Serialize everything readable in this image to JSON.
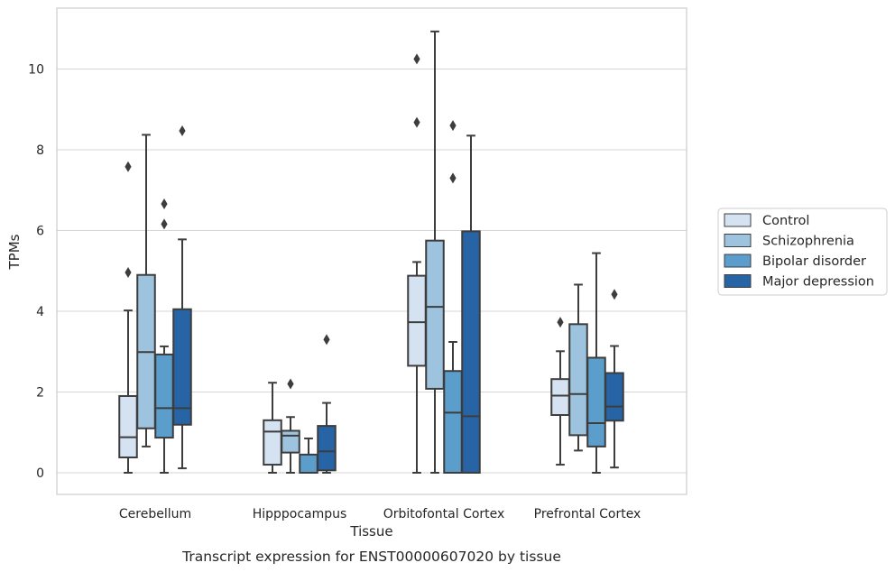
{
  "chart_data": {
    "type": "box",
    "title": "",
    "caption": "Transcript expression for ENST00000607020 by tissue",
    "xlabel": "Tissue",
    "ylabel": "TPMs",
    "ylim": [
      -0.5,
      11.5
    ],
    "yticks": [
      0,
      2,
      4,
      6,
      8,
      10
    ],
    "grid": "horizontal",
    "legend_position": "right",
    "categories": [
      "Cerebellum",
      "Hipppocampus",
      "Orbitofontal Cortex",
      "Prefrontal Cortex"
    ],
    "series": [
      {
        "name": "Control",
        "color": "#d4e2f1",
        "boxes": [
          {
            "whislo": 0,
            "q1": 0.38,
            "med": 0.88,
            "q3": 1.9,
            "whishi": 4.02,
            "fliers": [
              4.96,
              7.58
            ]
          },
          {
            "whislo": 0,
            "q1": 0.2,
            "med": 1.02,
            "q3": 1.3,
            "whishi": 2.23,
            "fliers": []
          },
          {
            "whislo": 0,
            "q1": 2.65,
            "med": 3.73,
            "q3": 4.88,
            "whishi": 5.22,
            "fliers": [
              8.68,
              10.25
            ]
          },
          {
            "whislo": 0.2,
            "q1": 1.43,
            "med": 1.91,
            "q3": 2.32,
            "whishi": 3.01,
            "fliers": [
              3.73
            ]
          }
        ]
      },
      {
        "name": "Schizophrenia",
        "color": "#9dc3de",
        "boxes": [
          {
            "whislo": 0.65,
            "q1": 1.1,
            "med": 2.99,
            "q3": 4.9,
            "whishi": 8.37,
            "fliers": []
          },
          {
            "whislo": 0,
            "q1": 0.5,
            "med": 0.92,
            "q3": 1.04,
            "whishi": 1.38,
            "fliers": [
              2.2
            ]
          },
          {
            "whislo": 0,
            "q1": 2.08,
            "med": 4.11,
            "q3": 5.75,
            "whishi": 10.93,
            "fliers": []
          },
          {
            "whislo": 0.55,
            "q1": 0.93,
            "med": 1.95,
            "q3": 3.68,
            "whishi": 4.66,
            "fliers": []
          }
        ]
      },
      {
        "name": "Bipolar disorder",
        "color": "#5b9dcb",
        "boxes": [
          {
            "whislo": 0,
            "q1": 0.87,
            "med": 1.6,
            "q3": 2.93,
            "whishi": 3.13,
            "fliers": [
              6.16,
              6.66
            ]
          },
          {
            "whislo": 0,
            "q1": 0,
            "med": 0,
            "q3": 0.45,
            "whishi": 0.85,
            "fliers": []
          },
          {
            "whislo": 0,
            "q1": 0,
            "med": 1.49,
            "q3": 2.52,
            "whishi": 3.24,
            "fliers": [
              7.3,
              8.6
            ]
          },
          {
            "whislo": 0,
            "q1": 0.65,
            "med": 1.23,
            "q3": 2.85,
            "whishi": 5.44,
            "fliers": []
          }
        ]
      },
      {
        "name": "Major depression",
        "color": "#2764a6",
        "boxes": [
          {
            "whislo": 0.11,
            "q1": 1.19,
            "med": 1.6,
            "q3": 4.05,
            "whishi": 5.78,
            "fliers": [
              8.47
            ]
          },
          {
            "whislo": 0,
            "q1": 0.06,
            "med": 0.53,
            "q3": 1.16,
            "whishi": 1.73,
            "fliers": [
              3.3
            ]
          },
          {
            "whislo": 0,
            "q1": 0,
            "med": 1.4,
            "q3": 5.98,
            "whishi": 8.35,
            "fliers": []
          },
          {
            "whislo": 0.13,
            "q1": 1.29,
            "med": 1.64,
            "q3": 2.47,
            "whishi": 3.14,
            "fliers": [
              4.42
            ]
          }
        ]
      }
    ]
  }
}
